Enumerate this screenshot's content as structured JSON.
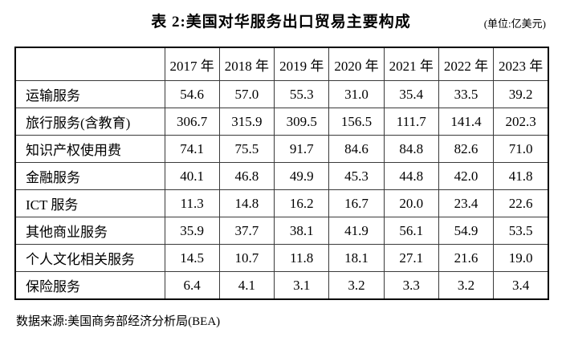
{
  "header": {
    "title": "表 2:美国对华服务出口贸易主要构成",
    "unit": "(单位:亿美元)"
  },
  "table": {
    "corner_label": "",
    "columns": [
      "2017 年",
      "2018 年",
      "2019 年",
      "2020 年",
      "2021 年",
      "2022 年",
      "2023 年"
    ],
    "rows": [
      {
        "label": "运输服务",
        "values": [
          "54.6",
          "57.0",
          "55.3",
          "31.0",
          "35.4",
          "33.5",
          "39.2"
        ]
      },
      {
        "label": "旅行服务(含教育)",
        "values": [
          "306.7",
          "315.9",
          "309.5",
          "156.5",
          "111.7",
          "141.4",
          "202.3"
        ]
      },
      {
        "label": "知识产权使用费",
        "values": [
          "74.1",
          "75.5",
          "91.7",
          "84.6",
          "84.8",
          "82.6",
          "71.0"
        ]
      },
      {
        "label": "金融服务",
        "values": [
          "40.1",
          "46.8",
          "49.9",
          "45.3",
          "44.8",
          "42.0",
          "41.8"
        ]
      },
      {
        "label": "ICT 服务",
        "values": [
          "11.3",
          "14.8",
          "16.2",
          "16.7",
          "20.0",
          "23.4",
          "22.6"
        ]
      },
      {
        "label": "其他商业服务",
        "values": [
          "35.9",
          "37.7",
          "38.1",
          "41.9",
          "56.1",
          "54.9",
          "53.5"
        ]
      },
      {
        "label": "个人文化相关服务",
        "values": [
          "14.5",
          "10.7",
          "11.8",
          "18.1",
          "27.1",
          "21.6",
          "19.0"
        ]
      },
      {
        "label": "保险服务",
        "values": [
          "6.4",
          "4.1",
          "3.1",
          "3.2",
          "3.3",
          "3.2",
          "3.4"
        ]
      }
    ]
  },
  "footer": {
    "source": "数据来源:美国商务部经济分析局(BEA)"
  },
  "colors": {
    "background": "#ffffff",
    "text": "#000000",
    "border": "#000000"
  }
}
